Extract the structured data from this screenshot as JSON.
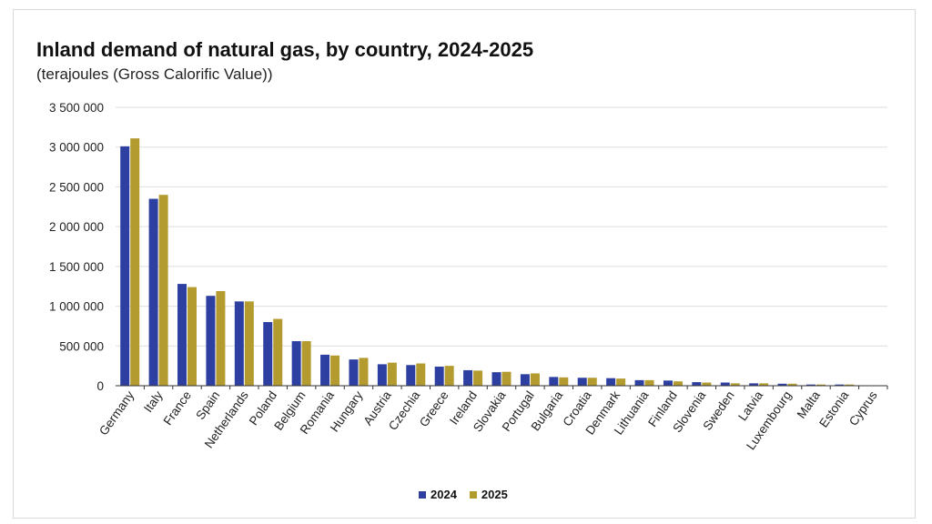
{
  "chart_data": {
    "type": "bar",
    "title": "Inland demand of natural gas, by country, 2024-2025",
    "subtitle": "(terajoules (Gross Calorific Value))",
    "categories": [
      "Germany",
      "Italy",
      "France",
      "Spain",
      "Netherlands",
      "Poland",
      "Belgium",
      "Romania",
      "Hungary",
      "Austria",
      "Czechia",
      "Greece",
      "Ireland",
      "Slovakia",
      "Portugal",
      "Bulgaria",
      "Croatia",
      "Denmark",
      "Lithuania",
      "Finland",
      "Slovenia",
      "Sweden",
      "Latvia",
      "Luxembourg",
      "Malta",
      "Estonia",
      "Cyprus"
    ],
    "series": [
      {
        "name": "2024",
        "color": "#2d3fa0",
        "values": [
          3010000,
          2350000,
          1280000,
          1130000,
          1060000,
          800000,
          560000,
          390000,
          330000,
          270000,
          260000,
          240000,
          195000,
          170000,
          145000,
          110000,
          100000,
          95000,
          70000,
          65000,
          45000,
          40000,
          30000,
          25000,
          15000,
          15000,
          2000
        ]
      },
      {
        "name": "2025",
        "color": "#b39b30",
        "values": [
          3110000,
          2400000,
          1240000,
          1190000,
          1060000,
          840000,
          560000,
          380000,
          350000,
          290000,
          280000,
          250000,
          190000,
          175000,
          155000,
          105000,
          100000,
          90000,
          70000,
          55000,
          40000,
          30000,
          30000,
          25000,
          15000,
          15000,
          2000
        ]
      }
    ],
    "ylim": [
      0,
      3500000
    ],
    "yticks": [
      0,
      500000,
      1000000,
      1500000,
      2000000,
      2500000,
      3000000,
      3500000
    ],
    "ytick_labels": [
      "0",
      "500 000",
      "1 000 000",
      "1 500 000",
      "2 000 000",
      "2 500 000",
      "3 000 000",
      "3 500 000"
    ],
    "xlabel": "",
    "ylabel": "",
    "grid": true,
    "legend_position": "bottom-center"
  }
}
